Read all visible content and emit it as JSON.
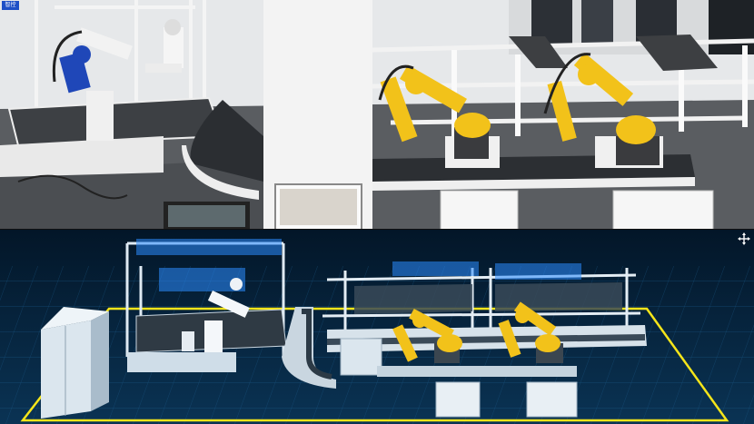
{
  "scene": {
    "badge_text": "智控",
    "top_panel": "physical-factory-photo",
    "bottom_panel": "digital-twin-3d-view"
  },
  "icons": [
    "expand-cross-icon"
  ],
  "colors": {
    "robot_yellow": "#f2c21a",
    "robot_blue": "#1f47b8",
    "twin_background": "#07223c",
    "twin_grid": "#1a5a8a",
    "boundary_line": "#f5e51a",
    "hologram_panel": "#2b8cff"
  }
}
